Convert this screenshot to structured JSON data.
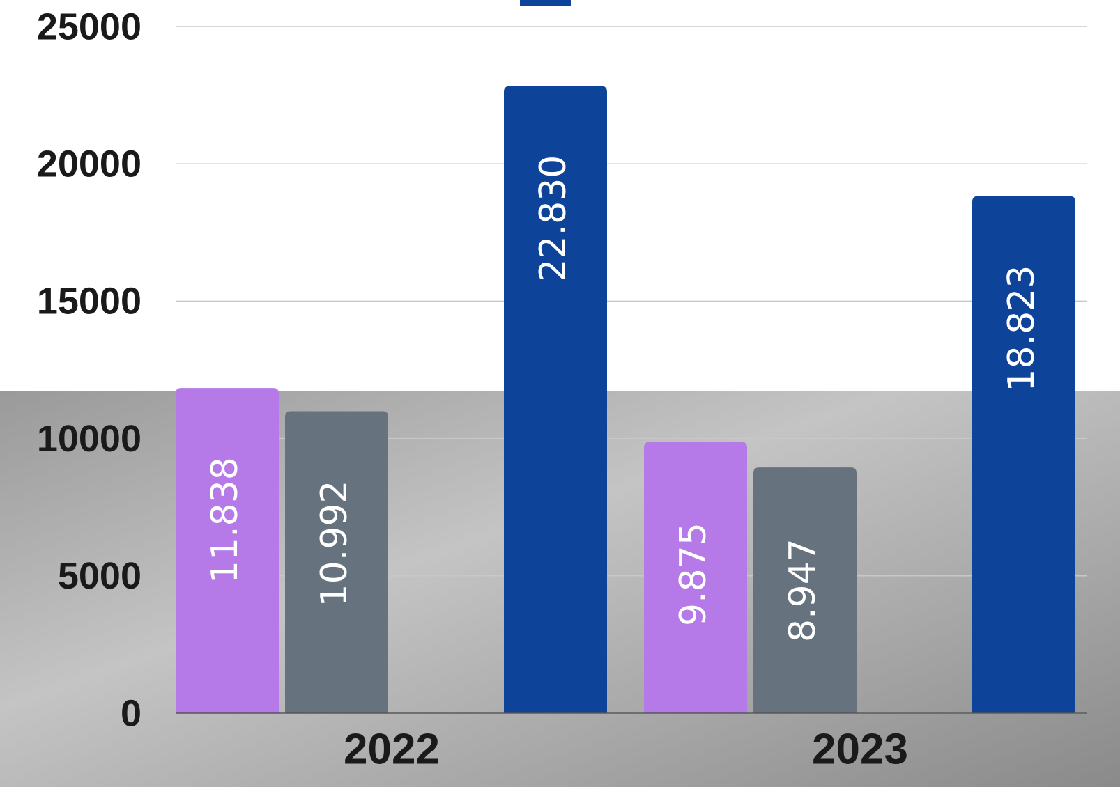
{
  "chart_data": {
    "type": "bar",
    "categories": [
      "2022",
      "2023"
    ],
    "series": [
      {
        "color": "#b57ae8",
        "values": [
          11838,
          9875
        ],
        "value_labels": [
          "11.838",
          "9.875"
        ]
      },
      {
        "color": "#66737e",
        "values": [
          10992,
          8947
        ],
        "value_labels": [
          "10.992",
          "8.947"
        ]
      },
      {
        "color": "#0d4499",
        "values": [
          22830,
          18823
        ],
        "value_labels": [
          "22.830",
          "18.823"
        ]
      }
    ],
    "ylim": [
      0,
      25000
    ],
    "yticks": [
      0,
      5000,
      10000,
      15000,
      20000,
      25000
    ],
    "grid": true
  }
}
